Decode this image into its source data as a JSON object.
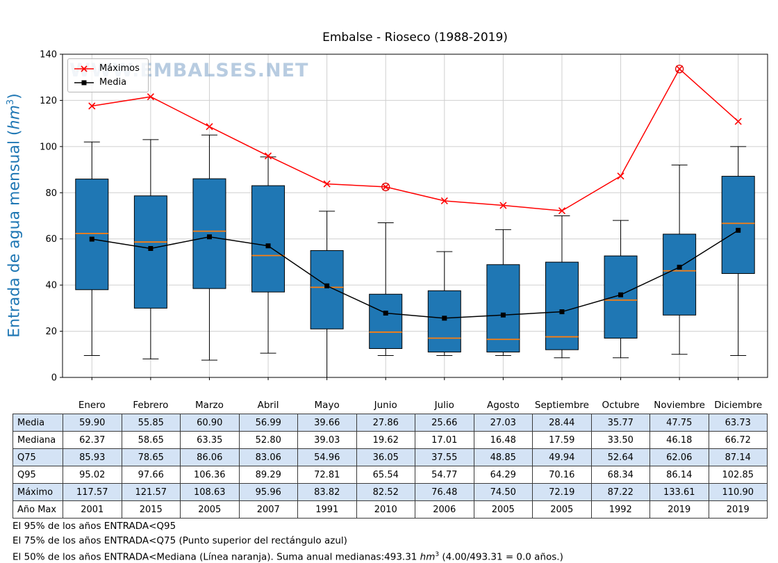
{
  "title": "Embalse - Rioseco (1988-2019)",
  "watermark": "WWW.EMBALSES.NET",
  "legend": {
    "maximos": "Máximos",
    "media": "Media"
  },
  "ylabel": {
    "pre": "Entrada de agua mensual (",
    "unit": "hm",
    "exp": "3",
    "post": ")"
  },
  "chart_data": {
    "type": "boxplot+line",
    "categories": [
      "Enero",
      "Febrero",
      "Marzo",
      "Abril",
      "Mayo",
      "Junio",
      "Julio",
      "Agosto",
      "Septiembre",
      "Octubre",
      "Noviembre",
      "Diciembre"
    ],
    "ylim": [
      0,
      140
    ],
    "yticks": [
      0,
      20,
      40,
      60,
      80,
      100,
      120,
      140
    ],
    "grid": true,
    "legend_position": "upper-left",
    "box_fill": "#1f77b4",
    "median_color": "#ff7f0e",
    "series": [
      {
        "name": "Máximos",
        "color": "#ff0000",
        "marker": "x",
        "values": [
          117.57,
          121.57,
          108.63,
          95.96,
          83.82,
          82.52,
          76.48,
          74.5,
          72.19,
          87.22,
          133.61,
          110.9
        ]
      },
      {
        "name": "Media",
        "color": "#000000",
        "marker": "square",
        "values": [
          59.9,
          55.85,
          60.9,
          56.99,
          39.66,
          27.86,
          25.66,
          27.03,
          28.44,
          35.77,
          47.75,
          63.73
        ]
      }
    ],
    "boxes": [
      {
        "whisker_low": 9.5,
        "q1": 38.0,
        "median": 62.37,
        "q3": 85.93,
        "whisker_high": 102.0,
        "fliers": []
      },
      {
        "whisker_low": 8.0,
        "q1": 30.0,
        "median": 58.65,
        "q3": 78.65,
        "whisker_high": 103.0,
        "fliers": []
      },
      {
        "whisker_low": 7.5,
        "q1": 38.5,
        "median": 63.35,
        "q3": 86.06,
        "whisker_high": 105.0,
        "fliers": []
      },
      {
        "whisker_low": 10.5,
        "q1": 37.0,
        "median": 52.8,
        "q3": 83.06,
        "whisker_high": 95.5,
        "fliers": []
      },
      {
        "whisker_low": 0.0,
        "q1": 21.0,
        "median": 39.03,
        "q3": 54.96,
        "whisker_high": 72.0,
        "fliers": []
      },
      {
        "whisker_low": 9.5,
        "q1": 12.5,
        "median": 19.62,
        "q3": 36.05,
        "whisker_high": 67.0,
        "fliers": [
          82.52
        ]
      },
      {
        "whisker_low": 9.5,
        "q1": 11.0,
        "median": 17.01,
        "q3": 37.55,
        "whisker_high": 54.5,
        "fliers": []
      },
      {
        "whisker_low": 9.5,
        "q1": 11.0,
        "median": 16.48,
        "q3": 48.85,
        "whisker_high": 64.0,
        "fliers": []
      },
      {
        "whisker_low": 8.5,
        "q1": 12.0,
        "median": 17.59,
        "q3": 49.94,
        "whisker_high": 70.0,
        "fliers": []
      },
      {
        "whisker_low": 8.5,
        "q1": 17.0,
        "median": 33.5,
        "q3": 52.64,
        "whisker_high": 68.0,
        "fliers": []
      },
      {
        "whisker_low": 10.0,
        "q1": 27.0,
        "median": 46.18,
        "q3": 62.06,
        "whisker_high": 92.0,
        "fliers": [
          133.61
        ]
      },
      {
        "whisker_low": 9.5,
        "q1": 45.0,
        "median": 66.72,
        "q3": 87.14,
        "whisker_high": 100.0,
        "fliers": []
      }
    ]
  },
  "table": {
    "rows": [
      {
        "label": "Media",
        "values": [
          "59.90",
          "55.85",
          "60.90",
          "56.99",
          "39.66",
          "27.86",
          "25.66",
          "27.03",
          "28.44",
          "35.77",
          "47.75",
          "63.73"
        ]
      },
      {
        "label": "Mediana",
        "values": [
          "62.37",
          "58.65",
          "63.35",
          "52.80",
          "39.03",
          "19.62",
          "17.01",
          "16.48",
          "17.59",
          "33.50",
          "46.18",
          "66.72"
        ]
      },
      {
        "label": "Q75",
        "values": [
          "85.93",
          "78.65",
          "86.06",
          "83.06",
          "54.96",
          "36.05",
          "37.55",
          "48.85",
          "49.94",
          "52.64",
          "62.06",
          "87.14"
        ]
      },
      {
        "label": "Q95",
        "values": [
          "95.02",
          "97.66",
          "106.36",
          "89.29",
          "72.81",
          "65.54",
          "54.77",
          "64.29",
          "70.16",
          "68.34",
          "86.14",
          "102.85"
        ]
      },
      {
        "label": "Máximo",
        "values": [
          "117.57",
          "121.57",
          "108.63",
          "95.96",
          "83.82",
          "82.52",
          "76.48",
          "74.50",
          "72.19",
          "87.22",
          "133.61",
          "110.90"
        ]
      },
      {
        "label": "Año Max",
        "values": [
          "2001",
          "2015",
          "2005",
          "2007",
          "1991",
          "2010",
          "2006",
          "2005",
          "2005",
          "1992",
          "2019",
          "2019"
        ]
      }
    ]
  },
  "footnotes": {
    "line1": "El 95% de los años ENTRADA<Q95",
    "line2": "El 75% de los años ENTRADA<Q75 (Punto superior del rectángulo azul)",
    "line3_pre": "El 50% de los años ENTRADA<Mediana (Línea naranja). Suma anual medianas:493.31 ",
    "line3_unit": "hm",
    "line3_exp": "3",
    "line3_post": " (4.00/493.31 = 0.0 años.)"
  }
}
